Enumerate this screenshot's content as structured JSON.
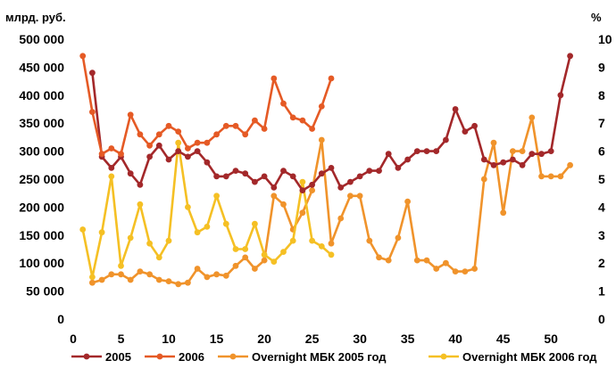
{
  "chart_data": {
    "type": "line",
    "left_axis_title": "млрд. руб.",
    "right_axis_title": "%",
    "xlim": [
      0,
      54
    ],
    "x_ticks": [
      0,
      5,
      10,
      15,
      20,
      25,
      30,
      35,
      40,
      45,
      50
    ],
    "ylim_left": [
      0,
      500000
    ],
    "y_ticks_left": [
      "0",
      "50 000",
      "100 000",
      "150 000",
      "200 000",
      "250 000",
      "300 000",
      "350 000",
      "400 000",
      "450 000",
      "500 000"
    ],
    "ylim_right": [
      0,
      10
    ],
    "y_ticks_right": [
      "0",
      "1",
      "2",
      "3",
      "4",
      "5",
      "6",
      "7",
      "8",
      "9",
      "10"
    ],
    "grid": false,
    "legend_position": "bottom",
    "series": [
      {
        "name": "2005",
        "axis": "left",
        "color": "#a3282a",
        "x": [
          2,
          3,
          4,
          5,
          6,
          7,
          8,
          9,
          10,
          11,
          12,
          13,
          14,
          15,
          16,
          17,
          18,
          19,
          20,
          21,
          22,
          23,
          24,
          25,
          26,
          27,
          28,
          29,
          30,
          31,
          32,
          33,
          34,
          35,
          36,
          37,
          38,
          39,
          40,
          41,
          42,
          43,
          44,
          45,
          46,
          47,
          48,
          49,
          50,
          51,
          52
        ],
        "values": [
          440000,
          290000,
          270000,
          290000,
          260000,
          240000,
          290000,
          310000,
          285000,
          300000,
          290000,
          300000,
          280000,
          255000,
          255000,
          265000,
          260000,
          245000,
          255000,
          235000,
          265000,
          255000,
          230000,
          240000,
          260000,
          270000,
          235000,
          245000,
          255000,
          265000,
          265000,
          295000,
          270000,
          285000,
          300000,
          300000,
          300000,
          320000,
          375000,
          335000,
          345000,
          285000,
          275000,
          280000,
          285000,
          275000,
          295000,
          295000,
          300000,
          400000,
          470000
        ]
      },
      {
        "name": "2006",
        "axis": "left",
        "color": "#e55a25",
        "x": [
          1,
          2,
          3,
          4,
          5,
          6,
          7,
          8,
          9,
          10,
          11,
          12,
          13,
          14,
          15,
          16,
          17,
          18,
          19,
          20,
          21,
          22,
          23,
          24,
          25,
          26,
          27
        ],
        "values": [
          470000,
          370000,
          295000,
          305000,
          295000,
          365000,
          330000,
          310000,
          330000,
          345000,
          335000,
          305000,
          315000,
          315000,
          330000,
          345000,
          345000,
          330000,
          355000,
          340000,
          430000,
          385000,
          360000,
          355000,
          340000,
          380000,
          430000
        ]
      },
      {
        "name": "Overnight МБК 2005 год",
        "axis": "right",
        "color": "#f0932b",
        "x": [
          2,
          3,
          4,
          5,
          6,
          7,
          8,
          9,
          10,
          11,
          12,
          13,
          14,
          15,
          16,
          17,
          18,
          19,
          20,
          21,
          22,
          23,
          24,
          25,
          26,
          27,
          28,
          29,
          30,
          31,
          32,
          33,
          34,
          35,
          36,
          37,
          38,
          39,
          40,
          41,
          42,
          43,
          44,
          45,
          46,
          47,
          48,
          49,
          50,
          51,
          52
        ],
        "values": [
          1.3,
          1.4,
          1.6,
          1.6,
          1.4,
          1.7,
          1.6,
          1.4,
          1.35,
          1.25,
          1.3,
          1.8,
          1.5,
          1.6,
          1.55,
          1.9,
          2.2,
          1.8,
          2.1,
          4.4,
          4.1,
          3.2,
          3.8,
          4.6,
          6.4,
          2.7,
          3.6,
          4.4,
          4.4,
          2.8,
          2.2,
          2.1,
          2.9,
          4.2,
          2.1,
          2.1,
          1.8,
          2.0,
          1.7,
          1.7,
          1.8,
          5.0,
          6.3,
          3.8,
          6.0,
          6.0,
          7.2,
          5.1,
          5.1,
          5.1,
          5.5
        ]
      },
      {
        "name": "Overnight МБК 2006 год",
        "axis": "right",
        "color": "#f5c024",
        "x": [
          1,
          2,
          3,
          4,
          5,
          6,
          7,
          8,
          9,
          10,
          11,
          12,
          13,
          14,
          15,
          16,
          17,
          18,
          19,
          20,
          21,
          22,
          23,
          24,
          25,
          26,
          27
        ],
        "values": [
          3.2,
          1.5,
          3.1,
          5.1,
          1.9,
          2.9,
          4.1,
          2.7,
          2.2,
          2.8,
          6.3,
          4.0,
          3.1,
          3.3,
          4.4,
          3.4,
          2.5,
          2.5,
          3.4,
          2.3,
          2.05,
          2.4,
          2.8,
          4.9,
          2.8,
          2.6,
          2.3
        ]
      }
    ]
  }
}
